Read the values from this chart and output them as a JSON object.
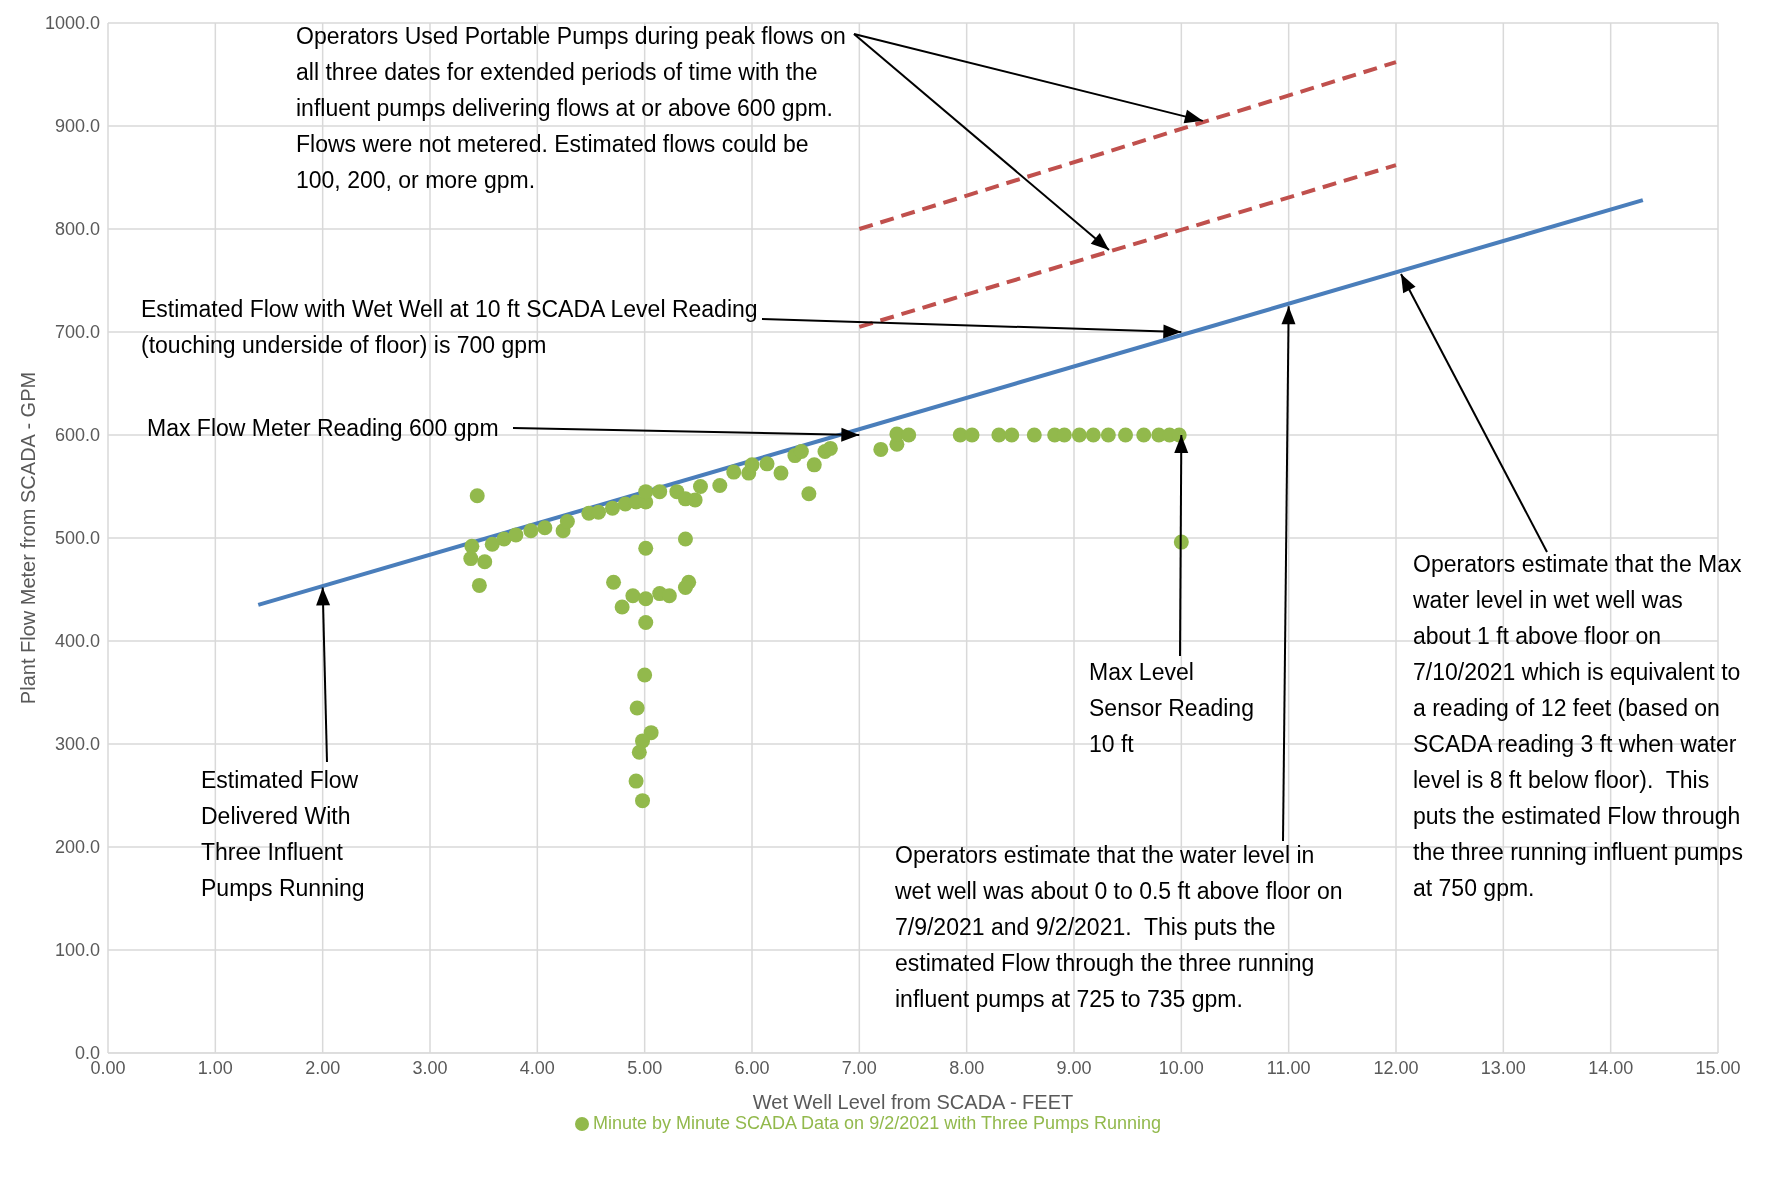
{
  "chart_data": {
    "type": "scatter",
    "xlabel": "Wet Well Level from SCADA - FEET",
    "ylabel": "Plant Flow Meter  from SCADA - GPM",
    "xlim": [
      0,
      15
    ],
    "ylim": [
      0,
      1000
    ],
    "xticks": [
      {
        "value": 0,
        "label": "0.00"
      },
      {
        "value": 1,
        "label": "1.00"
      },
      {
        "value": 2,
        "label": "2.00"
      },
      {
        "value": 3,
        "label": "3.00"
      },
      {
        "value": 4,
        "label": "4.00"
      },
      {
        "value": 5,
        "label": "5.00"
      },
      {
        "value": 6,
        "label": "6.00"
      },
      {
        "value": 7,
        "label": "7.00"
      },
      {
        "value": 8,
        "label": "8.00"
      },
      {
        "value": 9,
        "label": "9.00"
      },
      {
        "value": 10,
        "label": "10.00"
      },
      {
        "value": 11,
        "label": "11.00"
      },
      {
        "value": 12,
        "label": "12.00"
      },
      {
        "value": 13,
        "label": "13.00"
      },
      {
        "value": 14,
        "label": "14.00"
      },
      {
        "value": 15,
        "label": "15.00"
      }
    ],
    "yticks": [
      {
        "value": 0,
        "label": "0.0"
      },
      {
        "value": 100,
        "label": "100.0"
      },
      {
        "value": 200,
        "label": "200.0"
      },
      {
        "value": 300,
        "label": "300.0"
      },
      {
        "value": 400,
        "label": "400.0"
      },
      {
        "value": 500,
        "label": "500.0"
      },
      {
        "value": 600,
        "label": "600.0"
      },
      {
        "value": 700,
        "label": "700.0"
      },
      {
        "value": 800,
        "label": "800.0"
      },
      {
        "value": 900,
        "label": "900.0"
      },
      {
        "value": 1000,
        "label": "1000.0"
      }
    ],
    "grid": true,
    "legend": "bottom",
    "series": [
      {
        "name": "Minute by Minute SCADA Data on 9/2/2021 with Three Pumps Running",
        "marker": "circle",
        "color": "#92b94c",
        "x": [
          3.44,
          3.38,
          3.51,
          3.46,
          3.39,
          3.58,
          3.69,
          3.8,
          3.94,
          4.07,
          4.24,
          4.28,
          4.48,
          4.57,
          4.7,
          4.82,
          4.92,
          5.01,
          5.01,
          5.14,
          5.3,
          5.38,
          5.47,
          5.52,
          5.7,
          5.83,
          5.97,
          6.0,
          6.14,
          6.27,
          6.4,
          6.46,
          6.53,
          6.58,
          6.68,
          6.73,
          5.38,
          5.01,
          4.71,
          4.79,
          4.89,
          5.01,
          5.14,
          5.23,
          5.41,
          5.38,
          5.01,
          5.0,
          4.93,
          5.06,
          4.98,
          4.95,
          4.92,
          4.98,
          7.2,
          7.35,
          7.35,
          7.46,
          7.94,
          8.05,
          8.3,
          8.42,
          8.63,
          8.82,
          8.91,
          9.05,
          9.18,
          9.32,
          9.48,
          9.65,
          9.79,
          9.89,
          9.98,
          10.0
        ],
        "values": [
          541,
          480,
          477,
          454,
          492,
          494,
          499,
          503,
          507,
          510,
          507,
          516,
          524,
          525,
          529,
          533,
          535,
          535,
          545,
          545,
          545,
          538,
          537,
          550,
          551,
          564,
          563,
          571,
          572,
          563,
          580,
          584,
          543,
          571,
          584,
          587,
          499,
          490,
          457,
          433,
          444,
          441,
          446,
          444,
          457,
          452,
          418,
          367,
          335,
          311,
          303,
          292,
          264,
          245,
          586,
          591,
          601,
          600,
          600,
          600,
          600,
          600,
          600,
          600,
          600,
          600,
          600,
          600,
          600,
          600,
          600,
          600,
          600,
          496
        ]
      },
      {
        "type": "line",
        "color": "#4a7ebb",
        "line_style": "solid",
        "x": [
          1.4,
          14.3
        ],
        "values": [
          435,
          828
        ]
      },
      {
        "type": "line",
        "color": "#c0504d",
        "line_style": "dashed",
        "x": [
          7.0,
          12.0
        ],
        "values": [
          800,
          962
        ]
      },
      {
        "type": "line",
        "color": "#c0504d",
        "line_style": "dashed",
        "x": [
          7.0,
          12.0
        ],
        "values": [
          705,
          862
        ]
      }
    ],
    "annotations": [
      {
        "text": "Operators Used Portable Pumps during peak flows on all three dates for extended periods of time with the influent pumps delivering flows at or above 600 gpm.  Flows were not metered. Estimated flows could be 100, 200, or more gpm.",
        "x": 10.2,
        "y": 905
      },
      {
        "text": "Estimated Flow with Wet Well at 10 ft SCADA Level Reading (touching underside of floor) is 700 gpm",
        "x": 10.0,
        "y": 700
      },
      {
        "text": "Max Flow Meter Reading 600 gpm",
        "x": 7.0,
        "y": 600
      },
      {
        "text": "Estimated Flow Delivered With Three Influent Pumps Running",
        "x": 2.0,
        "y": 452
      },
      {
        "text": "Max Level Sensor Reading 10 ft",
        "x": 10.0,
        "y": 600
      },
      {
        "text": "Operators estimate that the water level in wet well was about 0 to 0.5 ft above floor on 7/9/2021 and 9/2/2021.  This puts the estimated Flow through the three running influent pumps at 725 to 735 gpm.",
        "x": 11.0,
        "y": 725
      },
      "Operators estimate that the Max water level in wet well was about 1 ft above floor on 7/10/2021 which is equivalent to a reading of 12 feet (based on SCADA reading 3 ft when water level is 8 ft below floor).  This puts the estimated Flow through the three running influent pumps at 750 gpm."
    ]
  }
}
